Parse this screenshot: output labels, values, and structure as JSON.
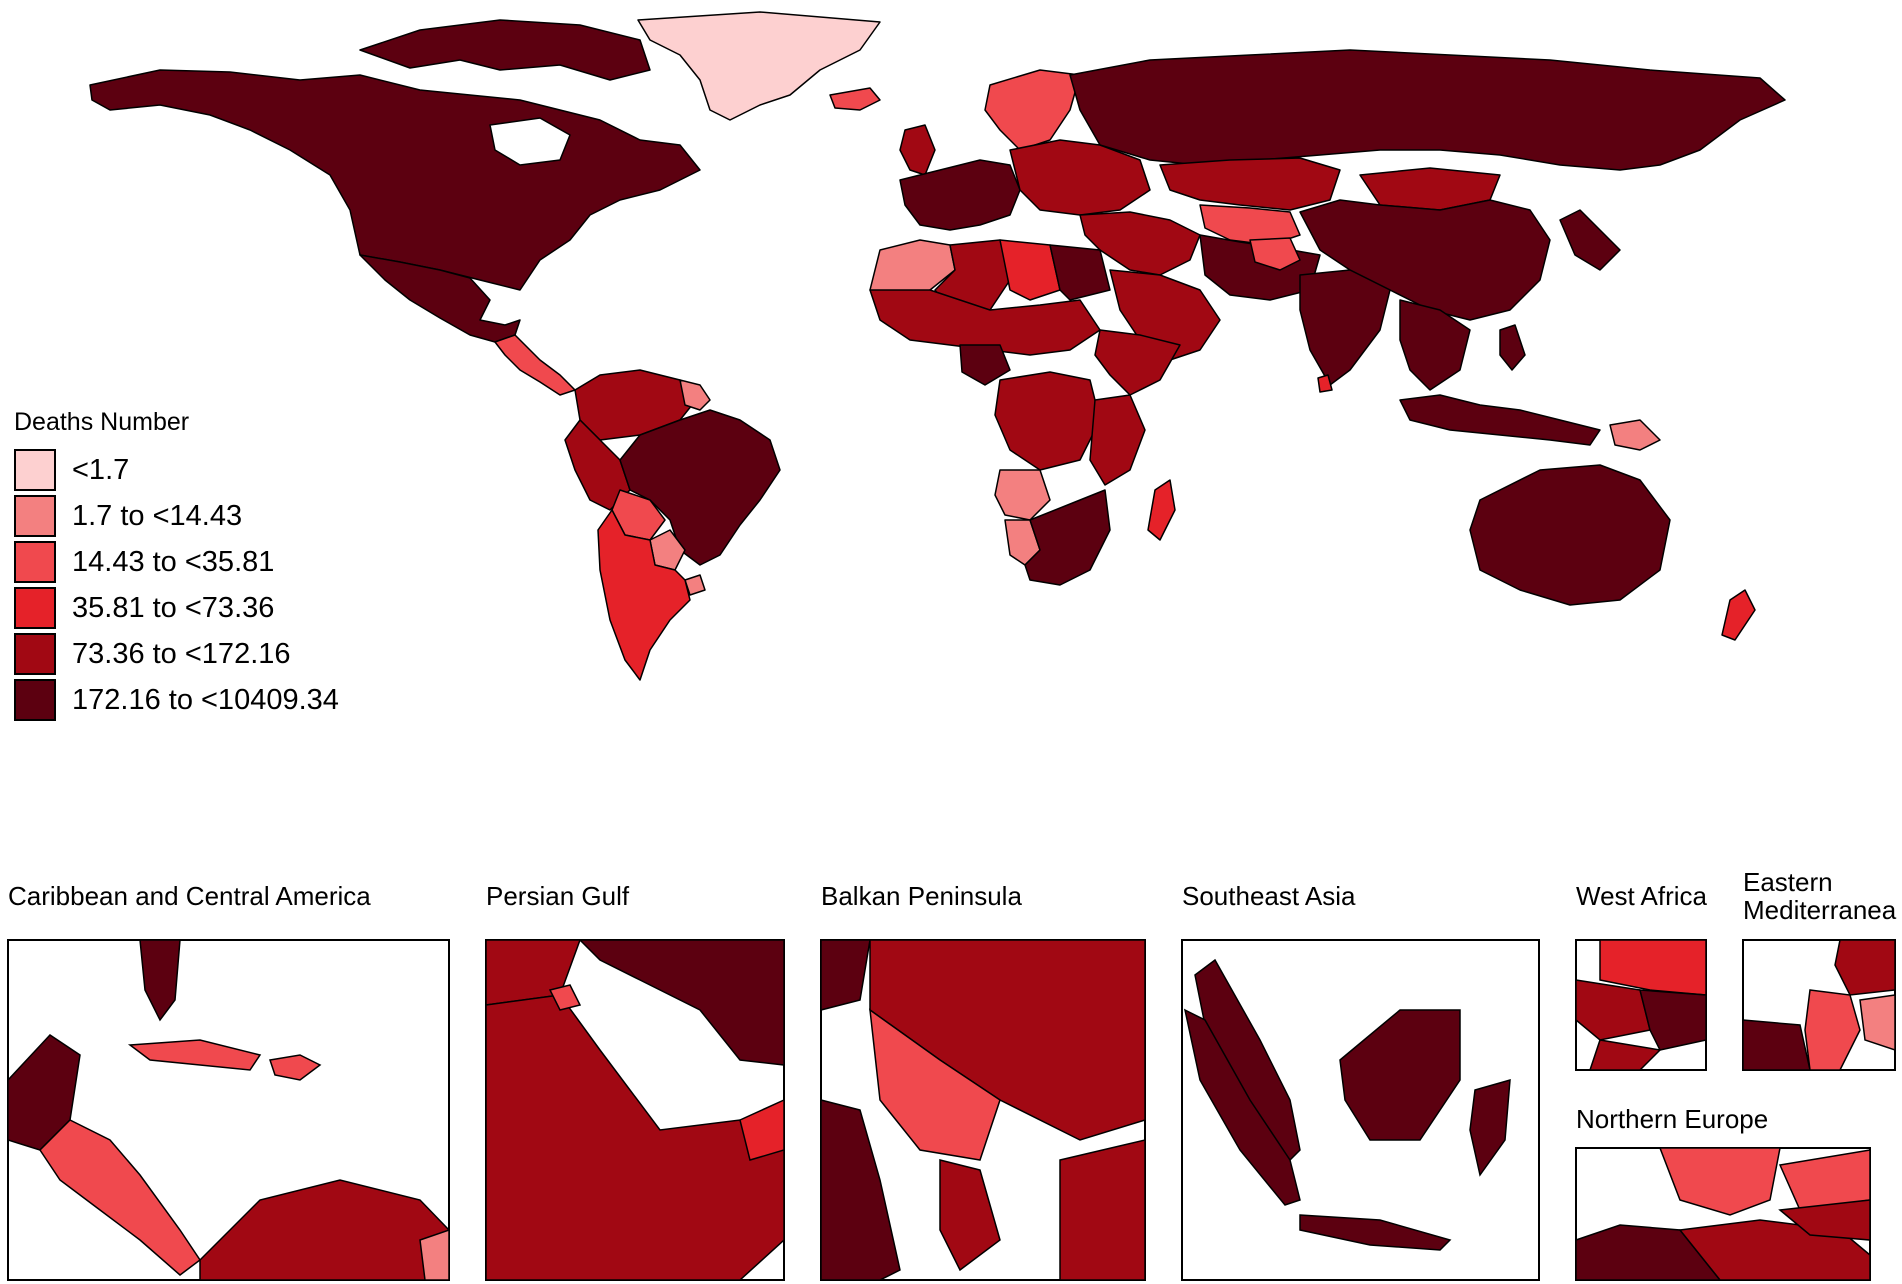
{
  "colors": {
    "lvl0": "#fdd0d0",
    "lvl1": "#f38080",
    "lvl2": "#f0494e",
    "lvl3": "#e52229",
    "lvl4": "#a10813",
    "lvl5": "#5c0010",
    "border": "#000000"
  },
  "legend": {
    "title": "Deaths Number",
    "items": [
      {
        "label": "<1.7",
        "level": 0
      },
      {
        "label": "1.7 to <14.43",
        "level": 1
      },
      {
        "label": "14.43 to <35.81",
        "level": 2
      },
      {
        "label": "35.81 to <73.36",
        "level": 3
      },
      {
        "label": "73.36 to <172.16",
        "level": 4
      },
      {
        "label": "172.16 to <10409.34",
        "level": 5
      }
    ]
  },
  "insets": [
    {
      "id": "caribbean",
      "title": "Caribbean and Central America"
    },
    {
      "id": "persian",
      "title": "Persian Gulf"
    },
    {
      "id": "balkan",
      "title": "Balkan Peninsula"
    },
    {
      "id": "seasia",
      "title": "Southeast Asia"
    },
    {
      "id": "westafrica",
      "title": "West Africa"
    },
    {
      "id": "eastmed",
      "title": "Eastern Mediterranea"
    },
    {
      "id": "northeurope",
      "title": "Northern Europe"
    }
  ],
  "regions": [
    {
      "name": "greenland",
      "level": 0
    },
    {
      "name": "north-america",
      "level": 5
    },
    {
      "name": "canada-islands",
      "level": 5
    },
    {
      "name": "mexico",
      "level": 5
    },
    {
      "name": "central-america",
      "level": 2
    },
    {
      "name": "colombia-venezuela",
      "level": 4
    },
    {
      "name": "brazil",
      "level": 5
    },
    {
      "name": "peru",
      "level": 4
    },
    {
      "name": "bolivia",
      "level": 2
    },
    {
      "name": "paraguay",
      "level": 1
    },
    {
      "name": "uruguay",
      "level": 1
    },
    {
      "name": "argentina-chile",
      "level": 3
    },
    {
      "name": "guianas",
      "level": 1
    },
    {
      "name": "iceland",
      "level": 2
    },
    {
      "name": "scandinavia",
      "level": 2
    },
    {
      "name": "uk-ireland",
      "level": 4
    },
    {
      "name": "western-europe",
      "level": 5
    },
    {
      "name": "eastern-europe",
      "level": 4
    },
    {
      "name": "russia",
      "level": 5
    },
    {
      "name": "kazakhstan",
      "level": 4
    },
    {
      "name": "central-asia",
      "level": 2
    },
    {
      "name": "mongolia",
      "level": 4
    },
    {
      "name": "china",
      "level": 5
    },
    {
      "name": "korea-japan",
      "level": 5
    },
    {
      "name": "middle-east",
      "level": 4
    },
    {
      "name": "arabian-peninsula",
      "level": 4
    },
    {
      "name": "iran-pakistan",
      "level": 5
    },
    {
      "name": "afghanistan",
      "level": 2
    },
    {
      "name": "india",
      "level": 5
    },
    {
      "name": "sri-lanka",
      "level": 3
    },
    {
      "name": "southeast-asia",
      "level": 5
    },
    {
      "name": "indonesia",
      "level": 5
    },
    {
      "name": "philippines",
      "level": 5
    },
    {
      "name": "papua-new-guinea",
      "level": 1
    },
    {
      "name": "australia",
      "level": 5
    },
    {
      "name": "new-zealand",
      "level": 3
    },
    {
      "name": "north-africa-west",
      "level": 1
    },
    {
      "name": "algeria",
      "level": 4
    },
    {
      "name": "libya",
      "level": 3
    },
    {
      "name": "egypt",
      "level": 5
    },
    {
      "name": "sahel",
      "level": 4
    },
    {
      "name": "nigeria",
      "level": 5
    },
    {
      "name": "horn-of-africa",
      "level": 4
    },
    {
      "name": "central-africa",
      "level": 4
    },
    {
      "name": "angola",
      "level": 1
    },
    {
      "name": "namibia",
      "level": 1
    },
    {
      "name": "southern-africa",
      "level": 5
    },
    {
      "name": "east-africa",
      "level": 4
    },
    {
      "name": "madagascar",
      "level": 3
    }
  ]
}
